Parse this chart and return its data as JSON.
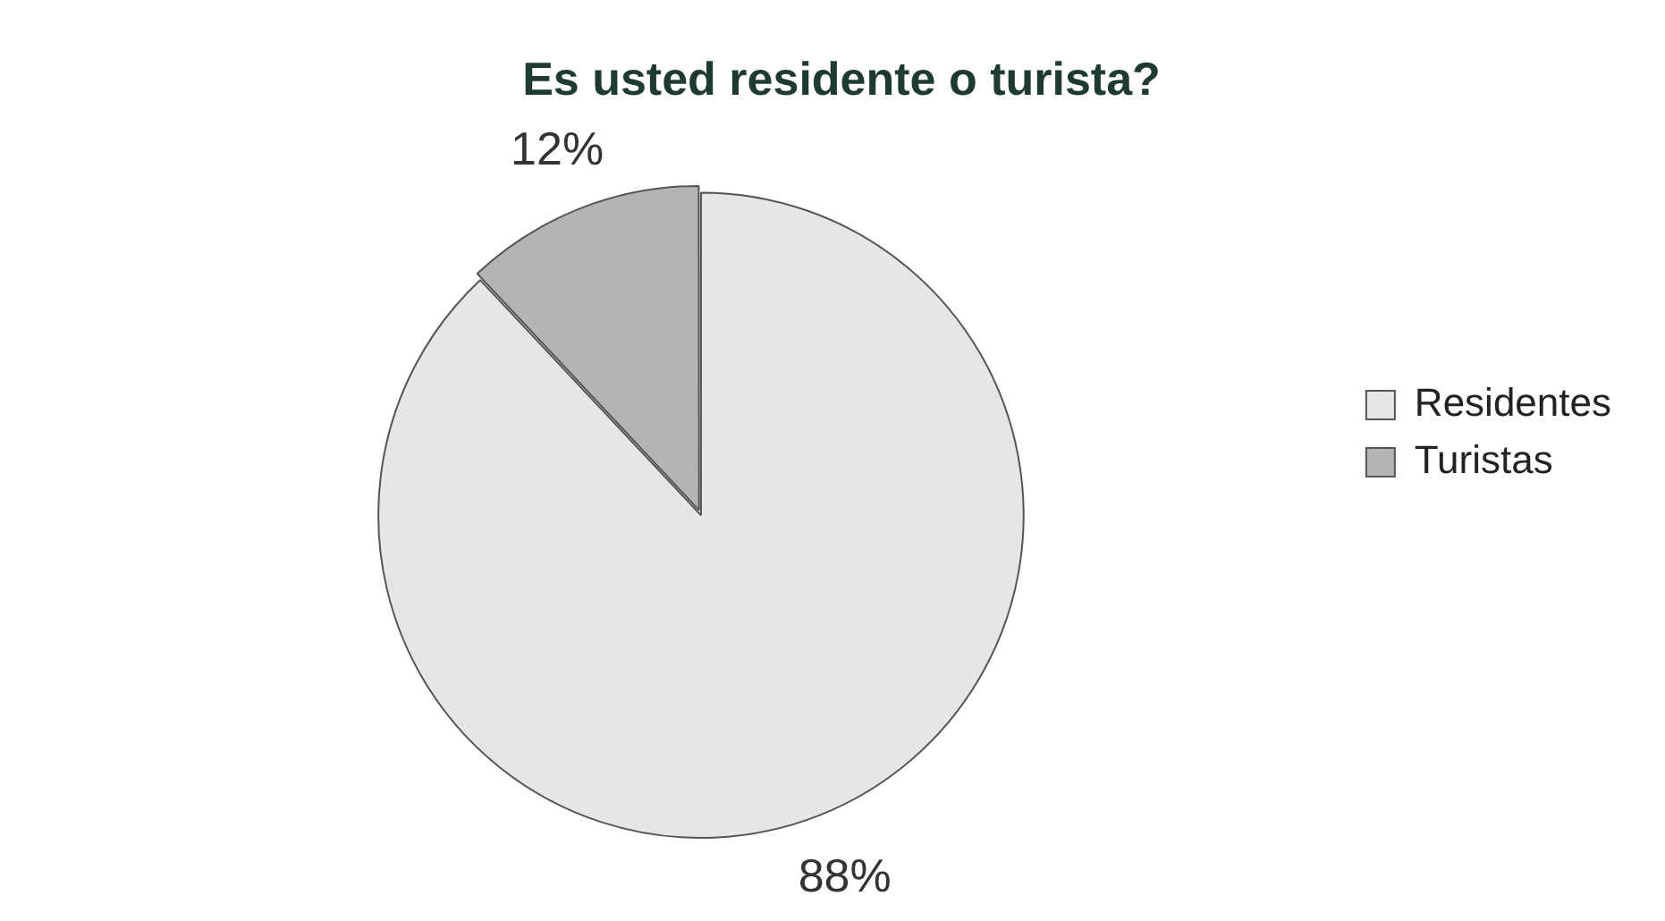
{
  "chart_data": {
    "type": "pie",
    "title": "Es usted residente o turista?",
    "categories": [
      "Residentes",
      "Turistas"
    ],
    "values": [
      88,
      12
    ],
    "colors": [
      "#e6e6e6",
      "#b4b4b4"
    ],
    "value_labels": [
      "88%",
      "12%"
    ],
    "legend": "right"
  }
}
